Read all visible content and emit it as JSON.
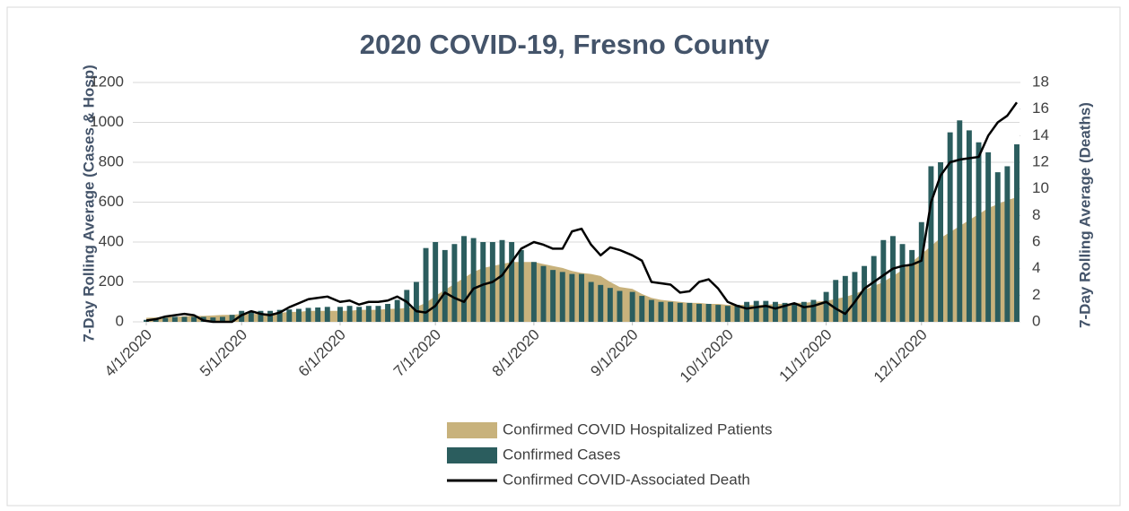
{
  "chart_data": {
    "type": "combo",
    "title": "2020 COVID-19, Fresno County",
    "y_label": "7-Day Rolling Average (Cases & Hosp)",
    "y2_label": "7-Day Rolling Average (Deaths)",
    "x": [
      "4/1/2020",
      "4/4/2020",
      "4/7/2020",
      "4/10/2020",
      "4/13/2020",
      "4/16/2020",
      "4/19/2020",
      "4/22/2020",
      "4/25/2020",
      "4/28/2020",
      "5/1/2020",
      "5/4/2020",
      "5/7/2020",
      "5/10/2020",
      "5/13/2020",
      "5/16/2020",
      "5/19/2020",
      "5/22/2020",
      "5/25/2020",
      "5/28/2020",
      "6/1/2020",
      "6/4/2020",
      "6/7/2020",
      "6/10/2020",
      "6/13/2020",
      "6/16/2020",
      "6/19/2020",
      "6/22/2020",
      "6/25/2020",
      "6/28/2020",
      "7/1/2020",
      "7/4/2020",
      "7/7/2020",
      "7/10/2020",
      "7/13/2020",
      "7/16/2020",
      "7/19/2020",
      "7/22/2020",
      "7/25/2020",
      "7/28/2020",
      "8/1/2020",
      "8/4/2020",
      "8/7/2020",
      "8/10/2020",
      "8/13/2020",
      "8/16/2020",
      "8/19/2020",
      "8/22/2020",
      "8/25/2020",
      "8/28/2020",
      "9/1/2020",
      "9/4/2020",
      "9/7/2020",
      "9/10/2020",
      "9/13/2020",
      "9/16/2020",
      "9/19/2020",
      "9/22/2020",
      "9/25/2020",
      "9/28/2020",
      "10/1/2020",
      "10/4/2020",
      "10/7/2020",
      "10/10/2020",
      "10/13/2020",
      "10/16/2020",
      "10/19/2020",
      "10/22/2020",
      "10/25/2020",
      "10/28/2020",
      "11/1/2020",
      "11/4/2020",
      "11/7/2020",
      "11/10/2020",
      "11/13/2020",
      "11/16/2020",
      "11/19/2020",
      "11/22/2020",
      "11/25/2020",
      "11/28/2020",
      "12/1/2020",
      "12/4/2020",
      "12/7/2020",
      "12/10/2020",
      "12/13/2020",
      "12/16/2020",
      "12/19/2020",
      "12/22/2020",
      "12/25/2020",
      "12/28/2020",
      "12/31/2020"
    ],
    "xticks": [
      "4/1/2020",
      "5/1/2020",
      "6/1/2020",
      "7/1/2020",
      "8/1/2020",
      "9/1/2020",
      "10/1/2020",
      "11/1/2020",
      "12/1/2020"
    ],
    "ylim": [
      0,
      1200
    ],
    "yticks": [
      0,
      200,
      400,
      600,
      800,
      1000,
      1200
    ],
    "y2lim": [
      0,
      18
    ],
    "y2ticks": [
      0,
      2,
      4,
      6,
      8,
      10,
      12,
      14,
      16,
      18
    ],
    "grid": true,
    "legend": "bottom",
    "series": [
      {
        "name": "Confirmed COVID Hospitalized Patients",
        "type": "area",
        "color": "#c8b27c",
        "values": [
          20,
          22,
          25,
          25,
          28,
          30,
          30,
          32,
          35,
          35,
          40,
          40,
          40,
          45,
          45,
          50,
          50,
          55,
          55,
          55,
          55,
          55,
          60,
          60,
          60,
          65,
          65,
          70,
          75,
          95,
          130,
          160,
          190,
          220,
          250,
          270,
          280,
          290,
          300,
          300,
          300,
          290,
          280,
          270,
          255,
          245,
          240,
          230,
          200,
          175,
          165,
          140,
          120,
          110,
          105,
          100,
          95,
          95,
          90,
          90,
          85,
          85,
          85,
          85,
          85,
          90,
          90,
          95,
          95,
          100,
          105,
          115,
          125,
          140,
          160,
          180,
          200,
          230,
          260,
          300,
          340,
          380,
          420,
          450,
          480,
          510,
          540,
          570,
          590,
          610,
          625
        ]
      },
      {
        "name": "Confirmed Cases",
        "type": "bar",
        "color": "#2b5d5e",
        "values": [
          10,
          15,
          20,
          25,
          25,
          25,
          25,
          22,
          25,
          35,
          55,
          55,
          55,
          55,
          60,
          62,
          65,
          70,
          72,
          75,
          75,
          80,
          75,
          80,
          80,
          90,
          110,
          160,
          200,
          370,
          400,
          360,
          390,
          430,
          420,
          400,
          400,
          410,
          400,
          360,
          300,
          280,
          260,
          250,
          240,
          240,
          200,
          185,
          170,
          155,
          150,
          130,
          110,
          100,
          100,
          95,
          95,
          90,
          90,
          85,
          80,
          85,
          100,
          105,
          105,
          100,
          95,
          95,
          100,
          110,
          150,
          210,
          230,
          250,
          280,
          330,
          410,
          430,
          390,
          360,
          500,
          780,
          800,
          950,
          1010,
          960,
          900,
          850,
          750,
          780,
          890
        ]
      },
      {
        "name": "Confirmed COVID-Associated Death",
        "type": "line",
        "axis": "y2",
        "color": "#000000",
        "values": [
          0.1,
          0.2,
          0.4,
          0.5,
          0.6,
          0.5,
          0.1,
          0,
          0,
          0,
          0.5,
          0.8,
          0.6,
          0.5,
          0.7,
          1.1,
          1.4,
          1.7,
          1.8,
          1.9,
          1.5,
          1.6,
          1.3,
          1.5,
          1.5,
          1.6,
          1.9,
          1.5,
          0.8,
          0.7,
          1.2,
          2.2,
          1.8,
          1.5,
          2.5,
          2.8,
          3,
          3.5,
          4.5,
          5.5,
          6,
          5.8,
          5.5,
          5.5,
          6.8,
          7,
          5.8,
          5,
          5.6,
          5.4,
          5,
          4.6,
          3,
          2.9,
          2.8,
          2.2,
          2.3,
          3,
          3.2,
          2.5,
          1.5,
          1.2,
          1,
          1.1,
          1.2,
          1,
          1.2,
          1.4,
          1.1,
          1.2,
          1.5,
          1,
          0.6,
          1.5,
          2.5,
          3,
          3.5,
          4,
          4.2,
          4.3,
          4.6,
          9,
          11,
          12,
          12.2,
          12.3,
          12.4,
          14,
          15,
          15.5,
          16.5
        ]
      }
    ]
  }
}
